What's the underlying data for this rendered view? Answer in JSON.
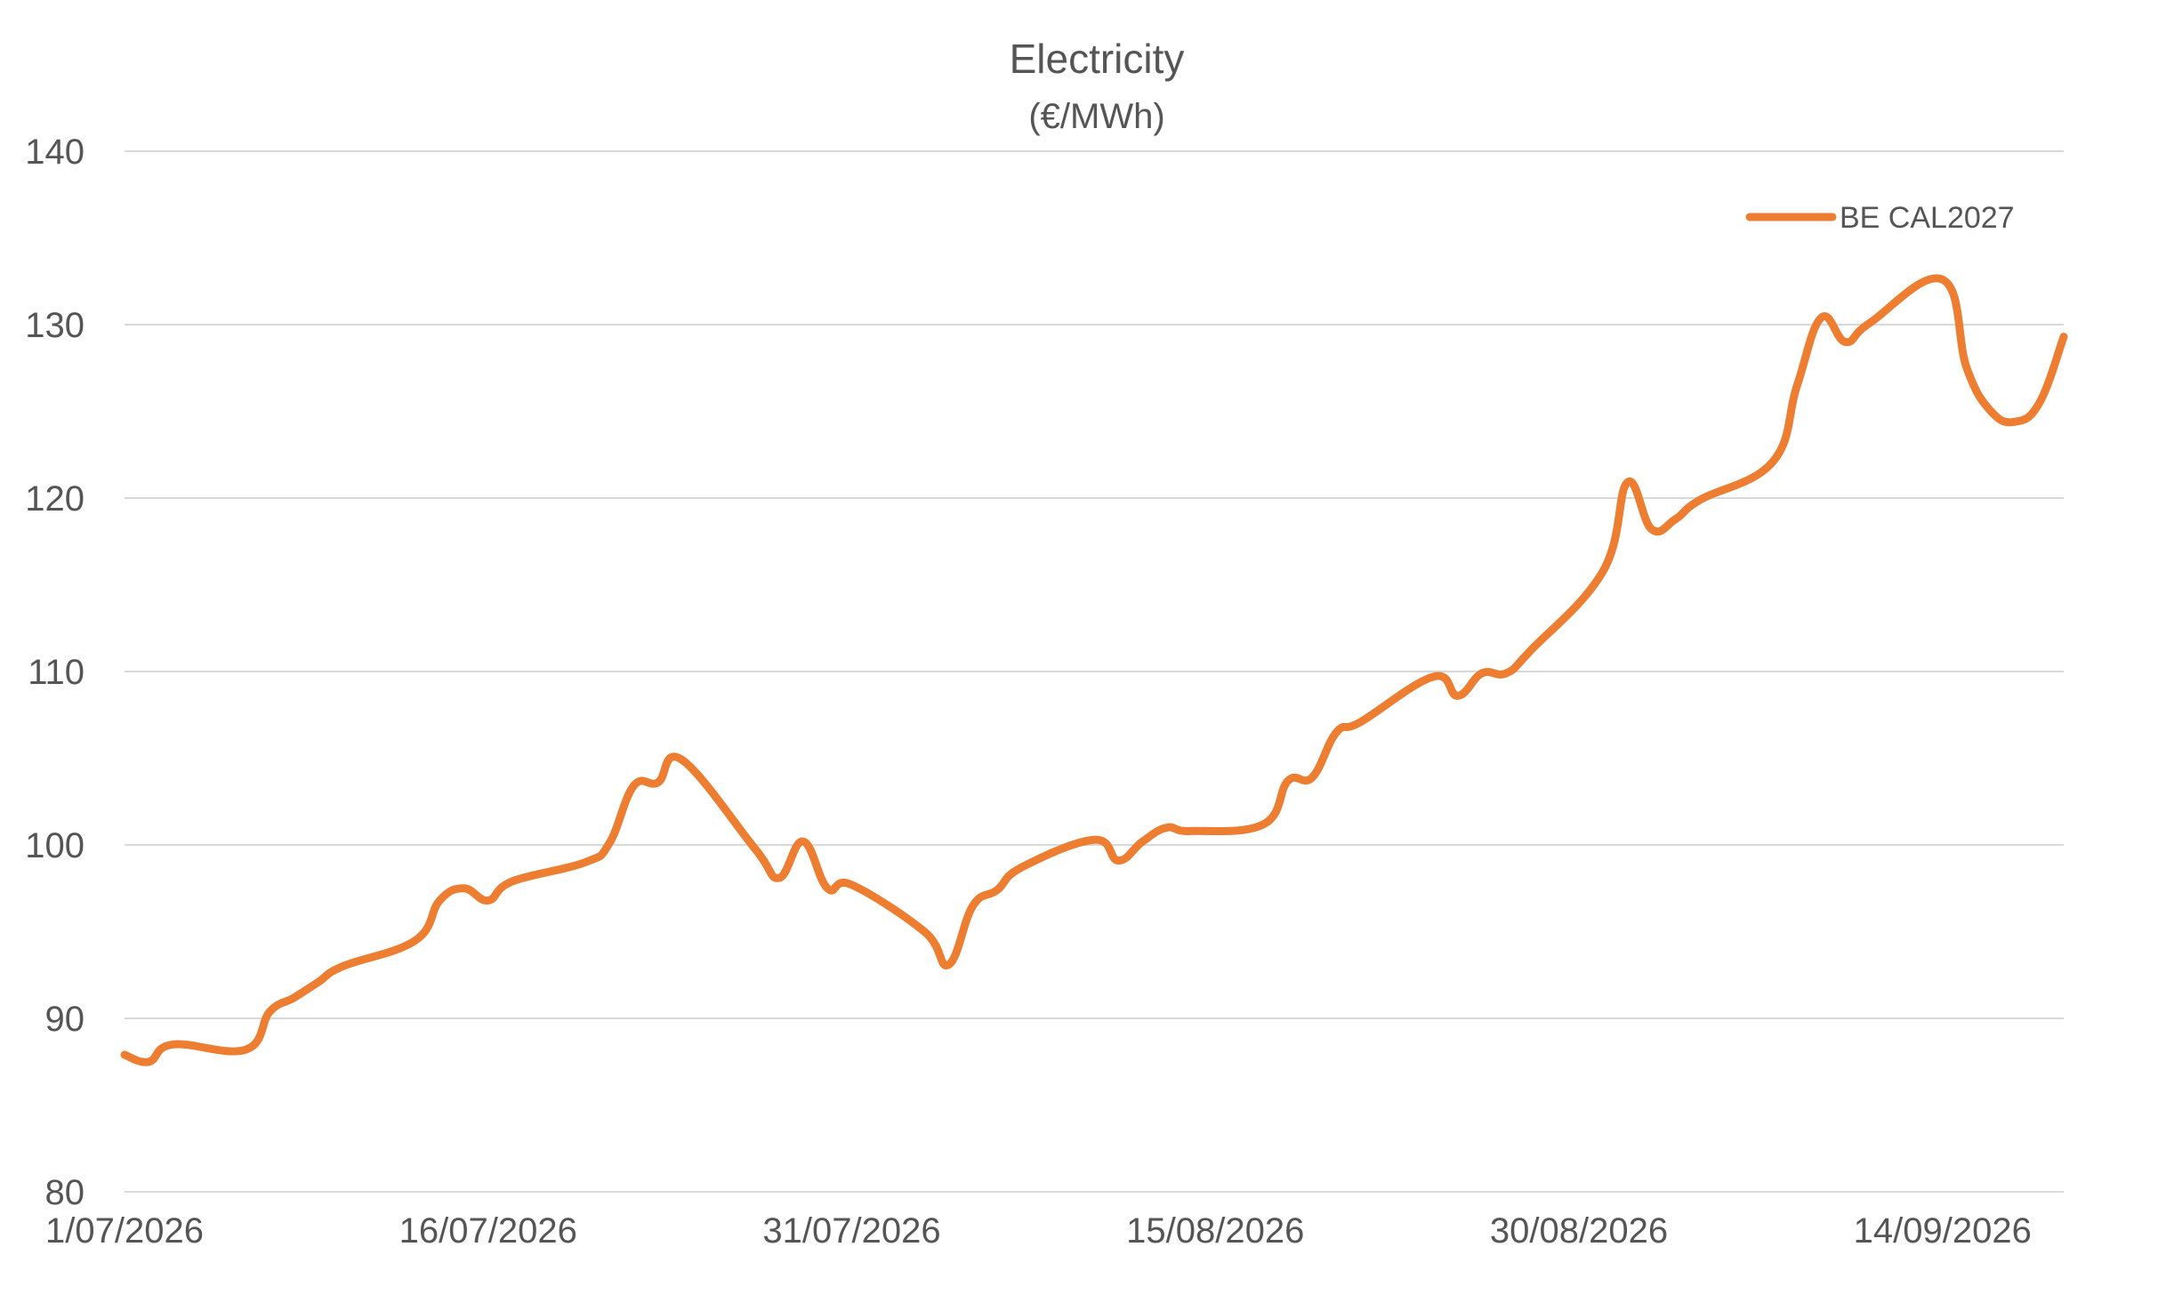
{
  "chart_data": {
    "type": "line",
    "title": "Electricity",
    "subtitle": "(€/MWh)",
    "xlabel": "",
    "ylabel": "",
    "ylim": [
      80,
      140
    ],
    "yticks": [
      80,
      90,
      100,
      110,
      120,
      130,
      140
    ],
    "y_tick_labels": [
      "80",
      "90",
      "100",
      "110",
      "120",
      "130",
      "140"
    ],
    "x_tick_labels": [
      "1/07/2026",
      "16/07/2026",
      "31/07/2026",
      "15/08/2026",
      "30/08/2026",
      "14/09/2026"
    ],
    "grid": true,
    "legend_position": "top-right",
    "series": [
      {
        "name": "BE CAL2027",
        "color": "#ed7d31",
        "x": [
          "2026-07-01",
          "2026-07-02",
          "2026-07-03",
          "2026-07-06",
          "2026-07-07",
          "2026-07-08",
          "2026-07-09",
          "2026-07-10",
          "2026-07-13",
          "2026-07-14",
          "2026-07-15",
          "2026-07-16",
          "2026-07-17",
          "2026-07-20",
          "2026-07-21",
          "2026-07-22",
          "2026-07-23",
          "2026-07-24",
          "2026-07-27",
          "2026-07-28",
          "2026-07-29",
          "2026-07-30",
          "2026-07-31",
          "2026-08-03",
          "2026-08-04",
          "2026-08-05",
          "2026-08-06",
          "2026-08-07",
          "2026-08-10",
          "2026-08-11",
          "2026-08-12",
          "2026-08-13",
          "2026-08-14",
          "2026-08-17",
          "2026-08-18",
          "2026-08-19",
          "2026-08-20",
          "2026-08-21",
          "2026-08-24",
          "2026-08-25",
          "2026-08-26",
          "2026-08-27",
          "2026-08-28",
          "2026-08-31",
          "2026-09-01",
          "2026-09-02",
          "2026-09-03",
          "2026-09-04",
          "2026-09-07",
          "2026-09-08",
          "2026-09-09",
          "2026-09-10",
          "2026-09-11",
          "2026-09-14",
          "2026-09-15",
          "2026-09-16",
          "2026-09-17",
          "2026-09-18",
          "2026-09-19"
        ],
        "values": [
          87.9,
          87.5,
          88.5,
          88.2,
          90.4,
          91.2,
          92.1,
          93.0,
          94.5,
          96.8,
          97.5,
          96.8,
          97.9,
          99.0,
          100.1,
          103.4,
          103.6,
          104.9,
          99.8,
          98.1,
          100.2,
          97.5,
          97.7,
          95.0,
          93.1,
          96.5,
          97.4,
          98.7,
          100.3,
          99.1,
          100.2,
          101.0,
          100.8,
          101.2,
          103.7,
          103.9,
          106.5,
          107.1,
          109.7,
          108.6,
          109.9,
          109.9,
          111.2,
          115.8,
          120.9,
          118.2,
          118.8,
          119.9,
          122.1,
          126.5,
          130.4,
          129.0,
          130.1,
          132.6,
          127.5,
          125.0,
          124.4,
          125.5,
          129.3
        ]
      }
    ]
  }
}
